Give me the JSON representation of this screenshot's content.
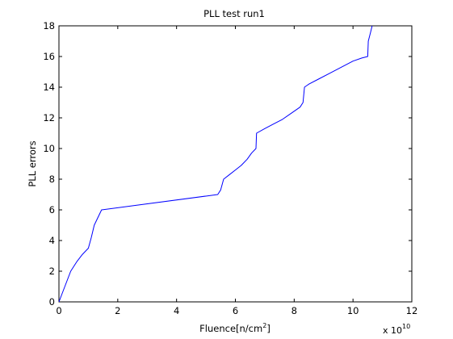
{
  "chart_data": {
    "type": "line",
    "title": "PLL test run1",
    "xlabel": "Fluence[n/cm",
    "xlabel_superscript": "2",
    "xlabel_suffix": "]",
    "ylabel": "PLL errors",
    "x_multiplier": {
      "base": "x 10",
      "exponent": "10"
    },
    "xlim": [
      0,
      12
    ],
    "ylim": [
      0,
      18
    ],
    "xticks": [
      0,
      2,
      4,
      6,
      8,
      10,
      12
    ],
    "yticks": [
      0,
      2,
      4,
      6,
      8,
      10,
      12,
      14,
      16,
      18
    ],
    "grid": false,
    "series": [
      {
        "color": "#0000ff",
        "x": [
          0,
          0.1,
          0.2,
          0.3,
          0.4,
          0.6,
          0.8,
          1.0,
          1.1,
          1.2,
          1.3,
          1.45,
          5.4,
          5.5,
          5.6,
          5.8,
          6.0,
          6.2,
          6.4,
          6.55,
          6.7,
          6.72,
          7.0,
          7.3,
          7.6,
          7.9,
          8.2,
          8.3,
          8.35,
          8.5,
          8.8,
          9.2,
          9.6,
          10.0,
          10.3,
          10.5,
          10.52,
          10.6,
          10.65
        ],
        "y": [
          0,
          0.5,
          1.0,
          1.5,
          2.0,
          2.6,
          3.1,
          3.5,
          4.2,
          5.0,
          5.4,
          6.0,
          7.0,
          7.3,
          8.0,
          8.3,
          8.6,
          8.9,
          9.3,
          9.7,
          10.0,
          11.0,
          11.3,
          11.6,
          11.9,
          12.3,
          12.7,
          13.0,
          14.0,
          14.2,
          14.5,
          14.9,
          15.3,
          15.7,
          15.9,
          16.0,
          17.0,
          17.6,
          18.0
        ]
      }
    ]
  }
}
